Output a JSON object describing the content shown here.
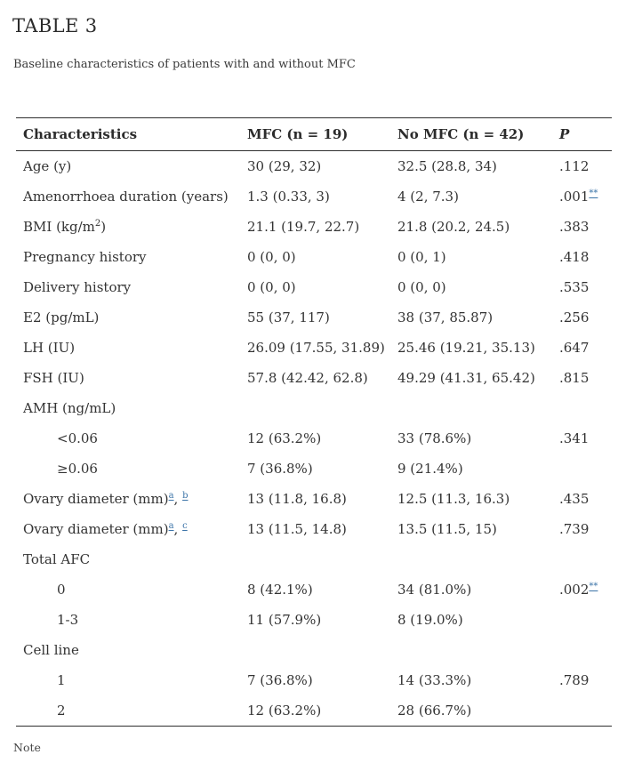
{
  "colors": {
    "text": "#333333",
    "link": "#3c74a8",
    "rule": "#2f2f2f"
  },
  "header": {
    "title": "TABLE 3",
    "caption": "Baseline characteristics of patients with and without MFC"
  },
  "table": {
    "columns": [
      "Characteristics",
      "MFC (n = 19)",
      "No MFC (n = 42)",
      "P"
    ],
    "rows": [
      {
        "label": "Age (y)",
        "mfc": "30 (29, 32)",
        "nomfc": "32.5 (28.8, 34)",
        "p": ".112"
      },
      {
        "label": "Amenorrhoea duration (years)",
        "mfc": "1.3 (0.33, 3)",
        "nomfc": "4 (2, 7.3)",
        "p": ".001",
        "p_link": "**"
      },
      {
        "label": "BMI (kg/m",
        "sup": "2",
        "label_end": ")",
        "mfc": "21.1 (19.7, 22.7)",
        "nomfc": "21.8 (20.2, 24.5)",
        "p": ".383"
      },
      {
        "label": "Pregnancy history",
        "mfc": "0 (0, 0)",
        "nomfc": "0 (0, 1)",
        "p": ".418"
      },
      {
        "label": "Delivery history",
        "mfc": "0 (0, 0)",
        "nomfc": "0 (0, 0)",
        "p": ".535"
      },
      {
        "label": "E2 (pg/mL)",
        "mfc": "55 (37, 117)",
        "nomfc": "38 (37, 85.87)",
        "p": ".256"
      },
      {
        "label": "LH (IU)",
        "mfc": "26.09 (17.55, 31.89)",
        "nomfc": "25.46 (19.21, 35.13)",
        "p": ".647"
      },
      {
        "label": "FSH (IU)",
        "mfc": "57.8 (42.42, 62.8)",
        "nomfc": "49.29 (41.31, 65.42)",
        "p": ".815"
      },
      {
        "label": "AMH (ng/mL)",
        "section": true
      },
      {
        "label": "<0.06",
        "indent": true,
        "mfc": "12 (63.2%)",
        "nomfc": "33 (78.6%)",
        "p": ".341"
      },
      {
        "label": "≥0.06",
        "indent": true,
        "mfc": "7 (36.8%)",
        "nomfc": "9 (21.4%)"
      },
      {
        "label": "Ovary diameter (mm)",
        "links": [
          "a",
          "b"
        ],
        "mfc": "13 (11.8, 16.8)",
        "nomfc": "12.5 (11.3, 16.3)",
        "p": ".435"
      },
      {
        "label": "Ovary diameter (mm)",
        "links": [
          "a",
          "c"
        ],
        "mfc": "13 (11.5, 14.8)",
        "nomfc": "13.5 (11.5, 15)",
        "p": ".739"
      },
      {
        "label": "Total AFC",
        "section": true
      },
      {
        "label": "0",
        "indent": true,
        "mfc": "8 (42.1%)",
        "nomfc": "34 (81.0%)",
        "p": ".002",
        "p_link": "**"
      },
      {
        "label": "1-3",
        "indent": true,
        "mfc": "11 (57.9%)",
        "nomfc": "8 (19.0%)"
      },
      {
        "label": "Cell line",
        "section": true
      },
      {
        "label": "1",
        "indent": true,
        "mfc": "7 (36.8%)",
        "nomfc": "14 (33.3%)",
        "p": ".789"
      },
      {
        "label": "2",
        "indent": true,
        "mfc": "12 (63.2%)",
        "nomfc": "28 (66.7%)"
      }
    ]
  },
  "footer": {
    "note": "Note"
  }
}
